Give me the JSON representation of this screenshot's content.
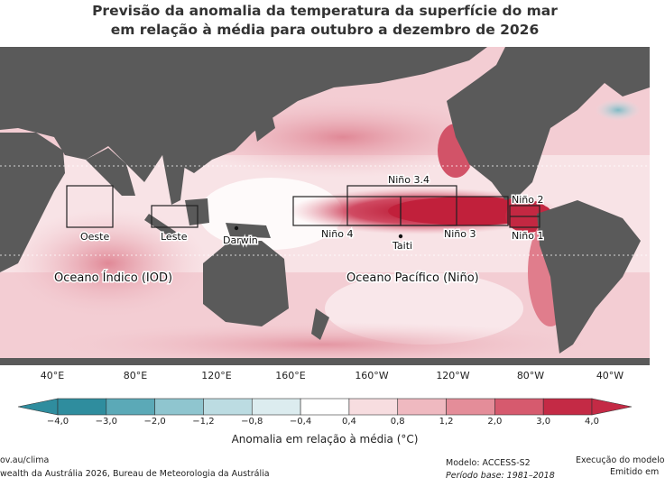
{
  "title_line1": "Previsão da anomalia da temperatura da superfície do mar",
  "title_line2": "em relação à média para outubro a dezembro de 2026",
  "longitudes": [
    "40°E",
    "80°E",
    "120°E",
    "160°E",
    "160°W",
    "120°W",
    "80°W",
    "40°W"
  ],
  "regions": {
    "oeste": "Oeste",
    "leste": "Leste",
    "darwin": "Darwin",
    "nino4": "Niño 4",
    "nino34": "Niño 3.4",
    "nino3": "Niño 3",
    "nino12a": "Niño 2",
    "nino12b": "Niño 1",
    "taiti": "Taiti",
    "iod_label": "Oceano Índico (IOD)",
    "nino_label": "Oceano Pacífico (Niño)"
  },
  "colorbar": {
    "ticks": [
      "−4,0",
      "−3,0",
      "−2,0",
      "−1,2",
      "−0,8",
      "−0,4",
      "0,4",
      "0,8",
      "1,2",
      "2,0",
      "3,0",
      "4,0"
    ],
    "colors": [
      "#2f8d9e",
      "#5ba9b7",
      "#8fc5cf",
      "#bcdce2",
      "#dcecef",
      "#ffffff",
      "#f7dde0",
      "#efb9c0",
      "#e48d99",
      "#d65a6e",
      "#c42a45"
    ],
    "title": "Anomalia em relação à média (°C)"
  },
  "footer": {
    "left1": "ov.au/clima",
    "left2": "wealth da Austrália 2026, Bureau de Meteorologia da Austrália",
    "model": "Modelo: ACCESS-S2",
    "base": "Período base: 1981–2018",
    "run": "Execução do modelo",
    "issued": "Emitido em"
  }
}
